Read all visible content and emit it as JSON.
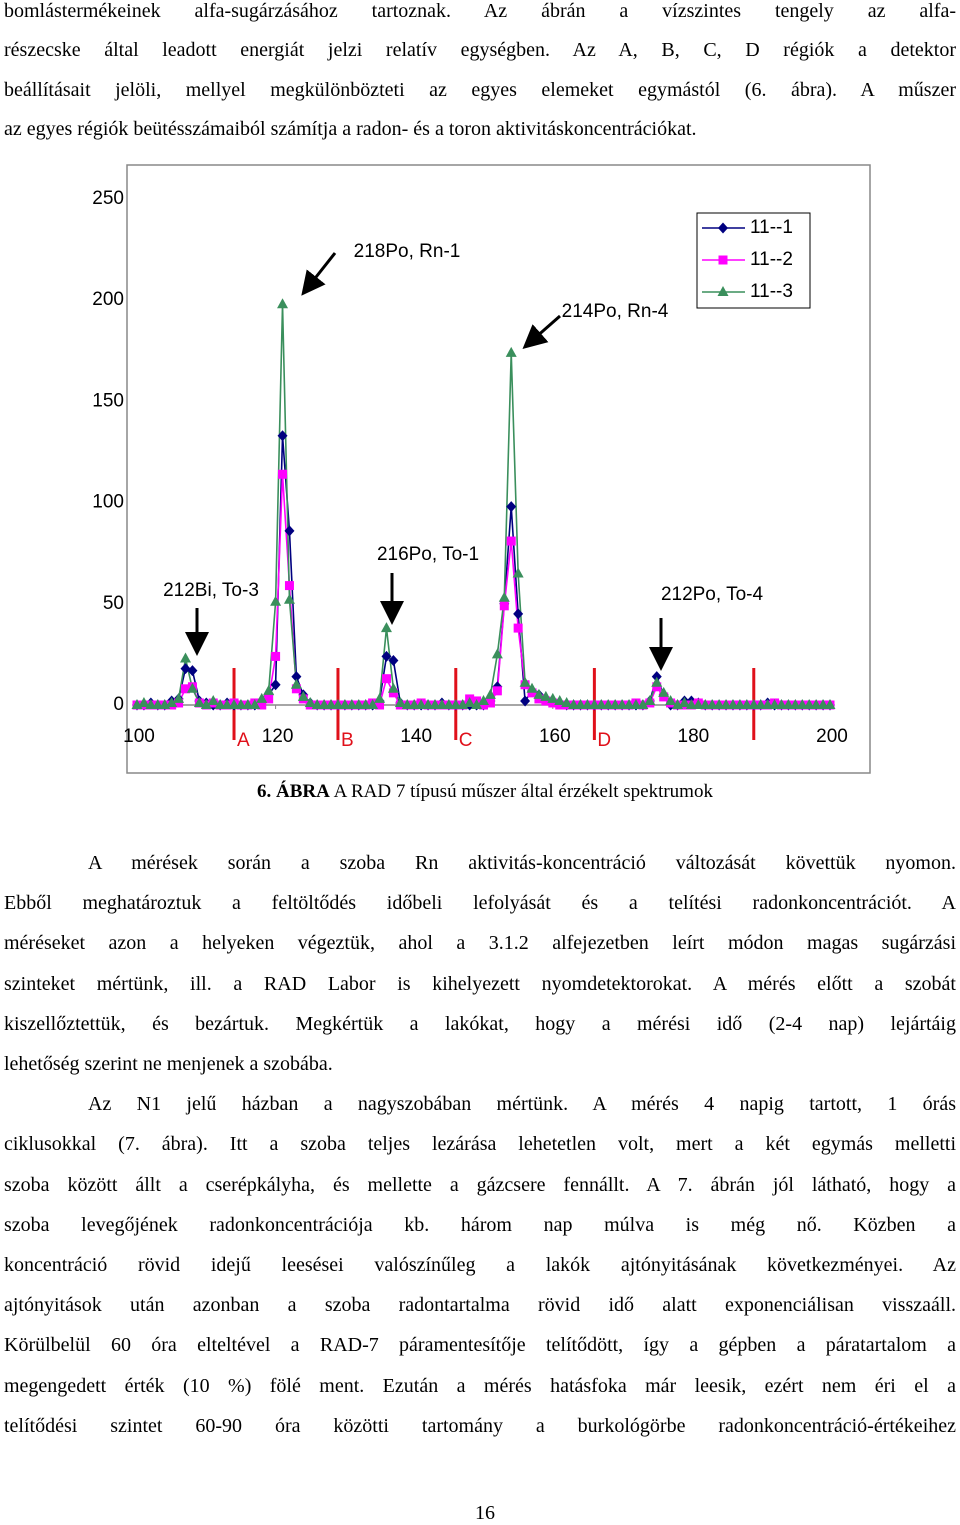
{
  "intro": {
    "lines": [
      "bomlástermékeinek alfa-sugárzásához tartoznak.  Az ábrán a vízszintes tengely az alfa-",
      "részecske által leadott energiát jelzi relatív egységben.  Az A, B, C, D régiók a detektor",
      "beállításait jelöli, mellyel megkülönbözteti az egyes elemeket egymástól (6. ábra).  A műszer",
      "az egyes régiók beütésszámaiból számítja a radon- és a toron aktivitáskoncentrációkat."
    ]
  },
  "chart_data": {
    "type": "line",
    "x": [
      100,
      101,
      102,
      103,
      104,
      105,
      106,
      107,
      108,
      109,
      110,
      111,
      112,
      113,
      114,
      115,
      116,
      117,
      118,
      119,
      120,
      121,
      122,
      123,
      124,
      125,
      126,
      127,
      128,
      129,
      130,
      131,
      132,
      133,
      134,
      135,
      136,
      137,
      138,
      139,
      140,
      141,
      142,
      143,
      144,
      145,
      146,
      147,
      148,
      149,
      150,
      151,
      152,
      153,
      154,
      155,
      156,
      157,
      158,
      159,
      160,
      161,
      162,
      163,
      164,
      165,
      166,
      167,
      168,
      169,
      170,
      171,
      172,
      173,
      174,
      175,
      176,
      177,
      178,
      179,
      180,
      181,
      182,
      183,
      184,
      185,
      186,
      187,
      188,
      189,
      190,
      191,
      192,
      193,
      194,
      195,
      196,
      197,
      198,
      199,
      200
    ],
    "series": [
      {
        "name": "11--1",
        "color": "#000080",
        "marker": "diamond",
        "values": [
          0,
          0,
          1,
          0,
          0,
          2,
          3,
          18,
          17,
          2,
          1,
          0,
          0,
          1,
          0,
          0,
          0,
          0,
          2,
          5,
          10,
          133,
          86,
          14,
          5,
          1,
          0,
          0,
          0,
          0,
          0,
          0,
          0,
          0,
          0,
          2,
          24,
          22,
          1,
          0,
          0,
          0,
          0,
          0,
          1,
          0,
          0,
          0,
          0,
          0,
          0,
          2,
          9,
          50,
          98,
          45,
          2,
          7,
          5,
          3,
          2,
          1,
          0,
          0,
          0,
          0,
          0,
          0,
          0,
          0,
          0,
          0,
          0,
          0,
          2,
          14,
          5,
          0,
          0,
          2,
          2,
          1,
          0,
          0,
          0,
          0,
          0,
          0,
          0,
          0,
          0,
          1,
          0,
          0,
          0,
          0,
          0,
          0,
          0,
          0,
          0
        ]
      },
      {
        "name": "11--2",
        "color": "#ff00ff",
        "marker": "square",
        "values": [
          0,
          0,
          0,
          0,
          0,
          0,
          1,
          8,
          9,
          1,
          0,
          1,
          0,
          0,
          1,
          0,
          0,
          1,
          0,
          3,
          24,
          114,
          59,
          8,
          3,
          0,
          0,
          0,
          0,
          0,
          0,
          0,
          0,
          0,
          1,
          0,
          13,
          6,
          0,
          0,
          0,
          1,
          0,
          0,
          0,
          0,
          0,
          0,
          3,
          2,
          0,
          1,
          7,
          49,
          81,
          38,
          10,
          6,
          3,
          2,
          1,
          0,
          0,
          0,
          0,
          0,
          0,
          0,
          0,
          0,
          0,
          0,
          1,
          0,
          1,
          9,
          4,
          1,
          0,
          0,
          0,
          1,
          0,
          0,
          0,
          0,
          0,
          0,
          0,
          0,
          0,
          0,
          1,
          0,
          0,
          0,
          0,
          0,
          0,
          0,
          0
        ]
      },
      {
        "name": "11--3",
        "color": "#3a8f5c",
        "marker": "triangle",
        "values": [
          0,
          1,
          0,
          0,
          0,
          1,
          3,
          23,
          8,
          1,
          0,
          2,
          0,
          0,
          0,
          0,
          0,
          0,
          3,
          7,
          51,
          198,
          52,
          10,
          4,
          1,
          0,
          0,
          0,
          0,
          0,
          0,
          0,
          0,
          0,
          3,
          38,
          8,
          1,
          0,
          0,
          0,
          0,
          0,
          0,
          0,
          0,
          0,
          1,
          0,
          2,
          5,
          25,
          53,
          174,
          65,
          11,
          8,
          5,
          4,
          3,
          2,
          1,
          0,
          0,
          0,
          0,
          0,
          0,
          0,
          0,
          0,
          0,
          0,
          2,
          11,
          6,
          2,
          0,
          1,
          0,
          0,
          0,
          0,
          0,
          0,
          0,
          0,
          0,
          0,
          0,
          0,
          0,
          0,
          0,
          0,
          0,
          0,
          0,
          0,
          0
        ]
      }
    ],
    "xlim": [
      100,
      200
    ],
    "xticks": [
      100,
      120,
      140,
      160,
      180,
      200
    ],
    "ylim": [
      0,
      250
    ],
    "yticks": [
      0,
      50,
      100,
      150,
      200,
      250
    ],
    "grid": false,
    "legend": "top-right",
    "annotations": [
      "218Po, Rn-1",
      "214Po, Rn-4",
      "212Bi, To-3",
      "216Po, To-1",
      "212Po, To-4"
    ],
    "region_boundaries": [
      114,
      129,
      146,
      166,
      189
    ],
    "region_labels": [
      "A",
      "B",
      "C",
      "D"
    ],
    "region_color": "#e0101a"
  },
  "caption": {
    "label": "6. ÁBRA",
    "text": "A RAD 7 típusú műszer által érzékelt spektrumok"
  },
  "body": {
    "paragraphs": [
      {
        "lines": [
          "A mérések során a szoba Rn aktivitás-koncentráció változását követtük nyomon.",
          "Ebből meghatároztuk a feltöltődés időbeli lefolyását és a telítési radonkoncentrációt.  A",
          "méréseket azon a helyeken végeztük, ahol a 3.1.2 alfejezetben leírt módon magas sugárzási",
          "szinteket mértünk, ill. a RAD Labor is kihelyezett nyomdetektorokat.  A mérés előtt a szobát",
          "kiszellőztettük, és bezártuk.  Megkértük a lakókat, hogy a mérési idő (2-4 nap) lejártáig",
          "lehetőség szerint ne menjenek a szobába."
        ]
      },
      {
        "lines": [
          "Az N1 jelű házban a nagyszobában mértünk.  A mérés 4 napig tartott, 1 órás",
          "ciklusokkal (7. ábra).  Itt a szoba teljes lezárása lehetetlen volt, mert a két egymás melletti",
          "szoba között állt a cserépkályha, és mellette a gázcsere fennállt.  A 7. ábrán jól látható, hogy a",
          "szoba levegőjének radonkoncentrációja kb. három nap múlva is még nő.  Közben a",
          "koncentráció rövid idejű leesései valószínűleg a lakók ajtónyitásának következményei.  Az",
          "ajtónyitások után azonban a szoba radontartalma rövid idő alatt exponenciálisan visszaáll.",
          "Körülbelül 60 óra elteltével a RAD-7 páramentesítője telítődött, így a gépben a páratartalom a",
          "megengedett érték (10 %) fölé ment.  Ezután a mérés hatásfoka már leesik, ezért nem éri el a",
          "telítődési szintet 60-90 óra közötti tartomány a burkológörbe radonkoncentráció-értékeihez"
        ]
      }
    ]
  },
  "page_number": "16"
}
